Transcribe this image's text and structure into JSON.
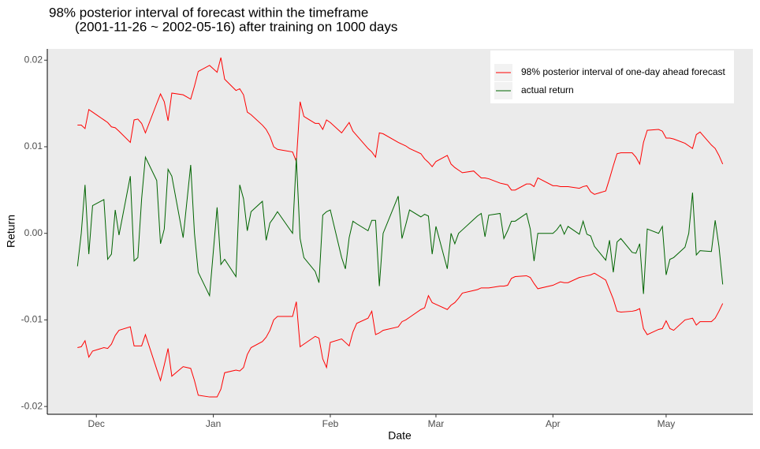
{
  "chart_data": {
    "type": "line",
    "title": [
      "98% posterior interval of forecast within the timeframe",
      "(2001-11-26 ~ 2002-05-16) after training on 1000 days"
    ],
    "x_label": "Date",
    "y_label": "Return",
    "legend": "top-right",
    "grid": false,
    "xlim": [
      "2001-11-18",
      "2002-05-24"
    ],
    "xticks": [
      {
        "value": "2001-12-01",
        "label": "Dec"
      },
      {
        "value": "2002-01-01",
        "label": "Jan"
      },
      {
        "value": "2002-02-01",
        "label": "Feb"
      },
      {
        "value": "2002-03-01",
        "label": "Mar"
      },
      {
        "value": "2002-04-01",
        "label": "Apr"
      },
      {
        "value": "2002-05-01",
        "label": "May"
      }
    ],
    "ylim": [
      -0.0209,
      0.0213
    ],
    "yticks": [
      -0.02,
      -0.01,
      {
        "value": 0,
        "label": "0.00"
      },
      0.01,
      0.02
    ],
    "x": [
      "2001-11-26",
      "2001-11-27",
      "2001-11-28",
      "2001-11-29",
      "2001-11-30",
      "2001-12-03",
      "2001-12-04",
      "2001-12-05",
      "2001-12-06",
      "2001-12-07",
      "2001-12-10",
      "2001-12-11",
      "2001-12-12",
      "2001-12-13",
      "2001-12-14",
      "2001-12-17",
      "2001-12-18",
      "2001-12-19",
      "2001-12-20",
      "2001-12-21",
      "2001-12-24",
      "2001-12-26",
      "2001-12-27",
      "2001-12-28",
      "2001-12-31",
      "2002-01-02",
      "2002-01-03",
      "2002-01-04",
      "2002-01-07",
      "2002-01-08",
      "2002-01-09",
      "2002-01-10",
      "2002-01-11",
      "2002-01-14",
      "2002-01-15",
      "2002-01-16",
      "2002-01-17",
      "2002-01-18",
      "2002-01-22",
      "2002-01-23",
      "2002-01-24",
      "2002-01-25",
      "2002-01-28",
      "2002-01-29",
      "2002-01-30",
      "2002-01-31",
      "2002-02-01",
      "2002-02-04",
      "2002-02-05",
      "2002-02-06",
      "2002-02-07",
      "2002-02-08",
      "2002-02-11",
      "2002-02-12",
      "2002-02-13",
      "2002-02-14",
      "2002-02-15",
      "2002-02-19",
      "2002-02-20",
      "2002-02-21",
      "2002-02-22",
      "2002-02-25",
      "2002-02-26",
      "2002-02-27",
      "2002-02-28",
      "2002-03-01",
      "2002-03-04",
      "2002-03-05",
      "2002-03-06",
      "2002-03-07",
      "2002-03-08",
      "2002-03-11",
      "2002-03-12",
      "2002-03-13",
      "2002-03-14",
      "2002-03-15",
      "2002-03-18",
      "2002-03-19",
      "2002-03-20",
      "2002-03-21",
      "2002-03-22",
      "2002-03-25",
      "2002-03-26",
      "2002-03-27",
      "2002-03-28",
      "2002-04-01",
      "2002-04-02",
      "2002-04-03",
      "2002-04-04",
      "2002-04-05",
      "2002-04-08",
      "2002-04-09",
      "2002-04-10",
      "2002-04-11",
      "2002-04-12",
      "2002-04-15",
      "2002-04-16",
      "2002-04-17",
      "2002-04-18",
      "2002-04-19",
      "2002-04-22",
      "2002-04-23",
      "2002-04-24",
      "2002-04-25",
      "2002-04-26",
      "2002-04-29",
      "2002-04-30",
      "2002-05-01",
      "2002-05-02",
      "2002-05-03",
      "2002-05-06",
      "2002-05-07",
      "2002-05-08",
      "2002-05-09",
      "2002-05-10",
      "2002-05-13",
      "2002-05-14",
      "2002-05-15",
      "2002-05-16"
    ],
    "series": [
      {
        "name": "98% posterior interval of one-day ahead forecast",
        "color": "#ff0000",
        "upper": [
          0.0125,
          0.0125,
          0.0121,
          0.0143,
          0.014,
          0.0131,
          0.0128,
          0.0123,
          0.0122,
          0.0118,
          0.0105,
          0.0131,
          0.0132,
          0.0127,
          0.0116,
          0.015,
          0.0161,
          0.0152,
          0.013,
          0.0162,
          0.016,
          0.0155,
          0.017,
          0.0187,
          0.0194,
          0.0186,
          0.0203,
          0.0178,
          0.0165,
          0.0167,
          0.016,
          0.014,
          0.0137,
          0.0125,
          0.012,
          0.0112,
          0.01,
          0.0097,
          0.0094,
          0.0083,
          0.0152,
          0.0135,
          0.0127,
          0.0127,
          0.012,
          0.0131,
          0.0128,
          0.0116,
          0.0122,
          0.0128,
          0.0118,
          0.0113,
          0.0098,
          0.0094,
          0.0088,
          0.0116,
          0.0115,
          0.0105,
          0.0103,
          0.0101,
          0.0098,
          0.0092,
          0.0086,
          0.0082,
          0.0077,
          0.0083,
          0.009,
          0.008,
          0.0076,
          0.0073,
          0.007,
          0.0072,
          0.0068,
          0.0064,
          0.0064,
          0.0063,
          0.0058,
          0.0057,
          0.0056,
          0.005,
          0.005,
          0.0057,
          0.0057,
          0.0054,
          0.0064,
          0.0055,
          0.0055,
          0.0054,
          0.0054,
          0.0054,
          0.0052,
          0.0054,
          0.0055,
          0.0048,
          0.0045,
          0.0049,
          0.0063,
          0.0078,
          0.0092,
          0.0093,
          0.0093,
          0.0088,
          0.008,
          0.0105,
          0.0119,
          0.012,
          0.0118,
          0.011,
          0.011,
          0.0109,
          0.0104,
          0.0101,
          0.0098,
          0.0114,
          0.0117,
          0.0102,
          0.0098,
          0.009,
          0.008
        ],
        "lower": [
          -0.0132,
          -0.0131,
          -0.0124,
          -0.0143,
          -0.0136,
          -0.0132,
          -0.0133,
          -0.0128,
          -0.0118,
          -0.0112,
          -0.0108,
          -0.013,
          -0.013,
          -0.013,
          -0.0117,
          -0.0157,
          -0.017,
          -0.0152,
          -0.0133,
          -0.0165,
          -0.0154,
          -0.0156,
          -0.017,
          -0.0187,
          -0.0189,
          -0.0189,
          -0.018,
          -0.0161,
          -0.0158,
          -0.0159,
          -0.0155,
          -0.014,
          -0.0132,
          -0.0125,
          -0.012,
          -0.0112,
          -0.01,
          -0.0096,
          -0.0096,
          -0.0079,
          -0.0131,
          -0.0128,
          -0.0119,
          -0.0121,
          -0.0145,
          -0.0155,
          -0.0126,
          -0.0122,
          -0.0126,
          -0.013,
          -0.0114,
          -0.0104,
          -0.0098,
          -0.009,
          -0.0117,
          -0.0115,
          -0.0112,
          -0.0108,
          -0.0102,
          -0.01,
          -0.0097,
          -0.0088,
          -0.0086,
          -0.0072,
          -0.008,
          -0.0082,
          -0.0088,
          -0.0083,
          -0.008,
          -0.0075,
          -0.0069,
          -0.0066,
          -0.0065,
          -0.0063,
          -0.0063,
          -0.0063,
          -0.0061,
          -0.0061,
          -0.006,
          -0.0052,
          -0.005,
          -0.0049,
          -0.0051,
          -0.0058,
          -0.0064,
          -0.006,
          -0.0058,
          -0.0056,
          -0.0057,
          -0.0057,
          -0.0051,
          -0.005,
          -0.0049,
          -0.0048,
          -0.0046,
          -0.0054,
          -0.0065,
          -0.0076,
          -0.009,
          -0.0091,
          -0.009,
          -0.0089,
          -0.0087,
          -0.011,
          -0.0117,
          -0.0111,
          -0.011,
          -0.0101,
          -0.011,
          -0.0112,
          -0.01,
          -0.0099,
          -0.0098,
          -0.0106,
          -0.0102,
          -0.0102,
          -0.0098,
          -0.009,
          -0.0081
        ]
      },
      {
        "name": "actual return",
        "color": "#006400",
        "values": [
          -0.0038,
          0,
          0.0056,
          -0.0024,
          0.0032,
          0.0039,
          -0.003,
          -0.0024,
          0.0027,
          -0.0002,
          0.0066,
          -0.0032,
          -0.0028,
          0.004,
          0.0088,
          0.0061,
          -0.0012,
          0.0005,
          0.0074,
          0.0066,
          -0.0005,
          0.0079,
          0,
          -0.0045,
          -0.0072,
          0.003,
          -0.0036,
          -0.003,
          -0.005,
          0.0056,
          0.004,
          0.0003,
          0.0025,
          0.0037,
          -0.0008,
          0.0012,
          0.0018,
          0.0025,
          0,
          0.0087,
          -0.0006,
          -0.0028,
          -0.0044,
          -0.0057,
          0.0021,
          0.0025,
          0.0027,
          -0.0028,
          -0.0041,
          -0.0005,
          0.0014,
          0.0011,
          0.0003,
          0.0015,
          0.0015,
          -0.0061,
          0,
          0.0043,
          -0.0006,
          0.001,
          0.0027,
          0.0019,
          0.0022,
          0.002,
          -0.0024,
          0.0008,
          -0.0041,
          0,
          -0.0012,
          0,
          0.0004,
          0.0016,
          0.002,
          0.0023,
          -0.0004,
          0.0021,
          0.0023,
          -0.0006,
          0.0003,
          0.0014,
          0.0014,
          0.0023,
          0.0005,
          -0.0032,
          0,
          0,
          0.0004,
          0.001,
          -0.0001,
          0.0008,
          -0.0001,
          0.0014,
          -0.0001,
          -0.0003,
          -0.0015,
          -0.0031,
          -0.0008,
          -0.0045,
          -0.001,
          -0.0006,
          -0.0022,
          -0.0023,
          -0.0012,
          -0.007,
          0.0005,
          0,
          0.0008,
          -0.0048,
          -0.003,
          -0.0028,
          -0.0016,
          0,
          0.0047,
          -0.0025,
          -0.002,
          -0.0021,
          0.0015,
          -0.0015,
          -0.0059
        ]
      }
    ]
  }
}
